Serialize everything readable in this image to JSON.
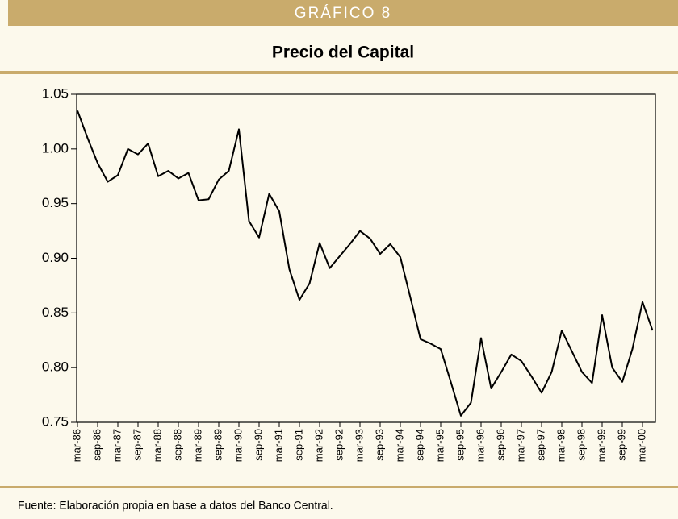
{
  "chart_data": {
    "type": "line",
    "label": "GRÁFICO 8",
    "title": "Precio del Capital",
    "source": "Fuente: Elaboración propia en base a datos del Banco Central.",
    "categories": [
      "mar-86",
      null,
      "sep-86",
      null,
      "mar-87",
      null,
      "sep-87",
      null,
      "mar-88",
      null,
      "sep-88",
      null,
      "mar-89",
      null,
      "sep-89",
      null,
      "mar-90",
      null,
      "sep-90",
      null,
      "mar-91",
      null,
      "sep-91",
      null,
      "mar-92",
      null,
      "sep-92",
      null,
      "mar-93",
      null,
      "sep-93",
      null,
      "mar-94",
      null,
      "sep-94",
      null,
      "mar-95",
      null,
      "sep-95",
      null,
      "mar-96",
      null,
      "sep-96",
      null,
      "mar-97",
      null,
      "sep-97",
      null,
      "mar-98",
      null,
      "sep-98",
      null,
      "mar-99",
      null,
      "sep-99",
      null,
      "mar-00",
      null
    ],
    "values": [
      1.035,
      1.01,
      0.987,
      0.97,
      0.976,
      1.0,
      0.995,
      1.005,
      0.975,
      0.98,
      0.973,
      0.978,
      0.953,
      0.954,
      0.972,
      0.98,
      1.018,
      0.934,
      0.919,
      0.959,
      0.943,
      0.89,
      0.862,
      0.877,
      0.914,
      0.891,
      0.902,
      0.913,
      0.925,
      0.918,
      0.904,
      0.913,
      0.901,
      0.864,
      0.826,
      0.822,
      0.817,
      0.787,
      0.756,
      0.768,
      0.827,
      0.781,
      0.796,
      0.812,
      0.806,
      0.792,
      0.777,
      0.796,
      0.834,
      0.815,
      0.796,
      0.786,
      0.848,
      0.8,
      0.787,
      0.817,
      0.86,
      0.834
    ],
    "color": "#000000",
    "ylim": [
      0.75,
      1.05
    ],
    "yticks": [
      0.75,
      {
        "value": 0.8,
        "label": "0.80"
      },
      0.85,
      {
        "value": 0.9,
        "label": "0.90"
      },
      0.95,
      {
        "value": 1.0,
        "label": "1.00"
      },
      1.05
    ],
    "grid": false
  }
}
